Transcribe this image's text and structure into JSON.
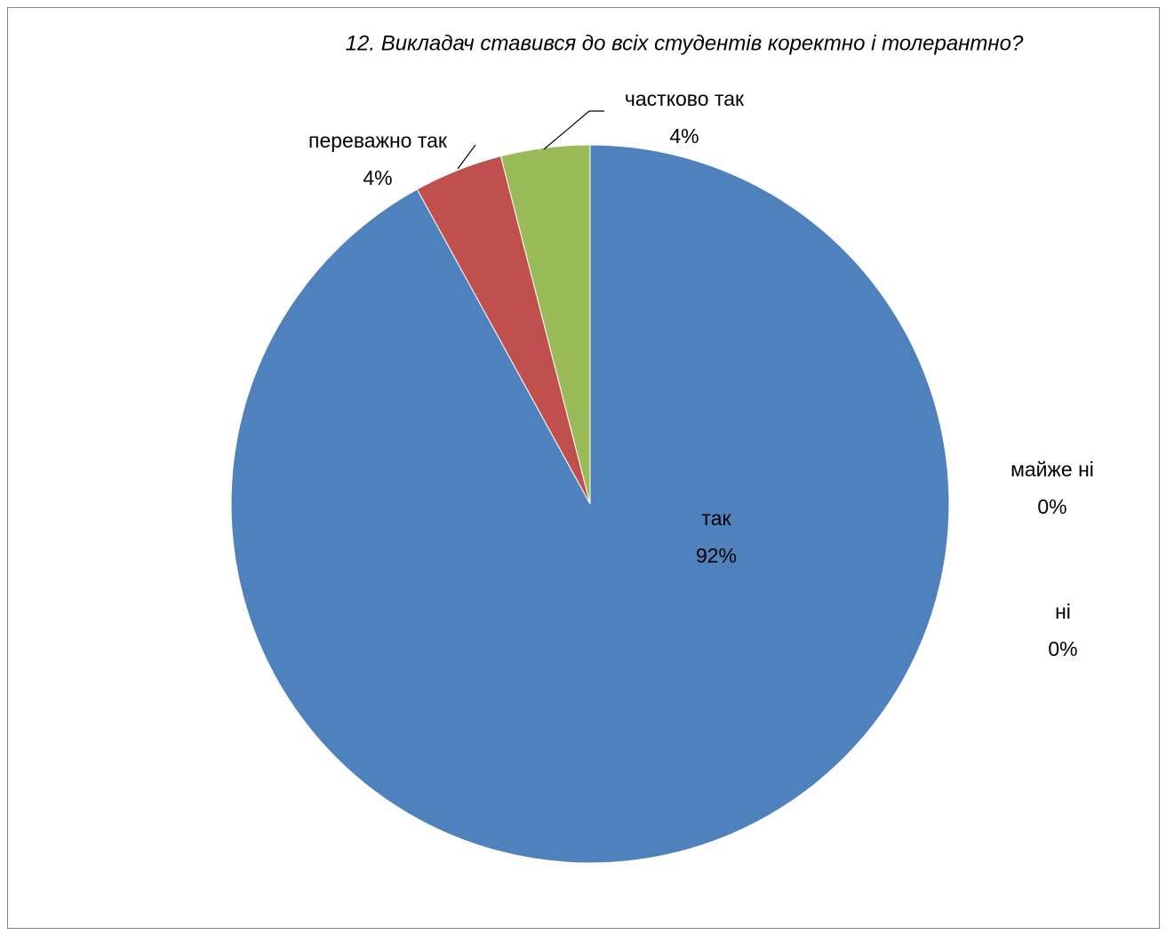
{
  "chart_data": {
    "type": "pie",
    "title": "12. Викладач ставився до всіх студентів коректно і толерантно?",
    "categories": [
      "так",
      "переважно так",
      "частково так",
      "майже ні",
      "ні"
    ],
    "values": [
      92,
      4,
      4,
      0,
      0
    ],
    "value_labels": [
      "92%",
      "4%",
      "4%",
      "0%",
      "0%"
    ],
    "colors": [
      "#4f81bd",
      "#c0504d",
      "#9bbb59",
      "#8064a2",
      "#4bacc6"
    ]
  }
}
